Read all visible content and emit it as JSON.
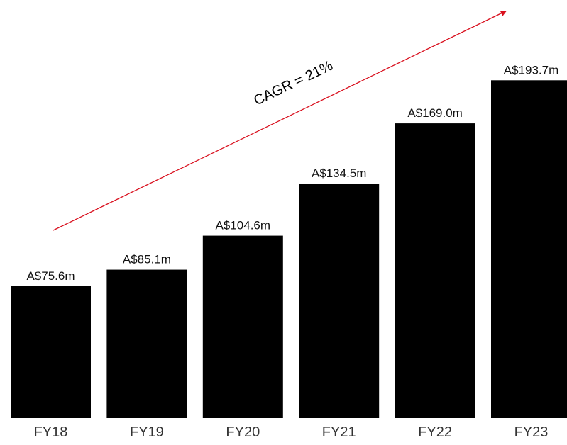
{
  "chart_data": {
    "type": "bar",
    "categories": [
      "FY18",
      "FY19",
      "FY20",
      "FY21",
      "FY22",
      "FY23"
    ],
    "values": [
      75.6,
      85.1,
      104.6,
      134.5,
      169.0,
      193.7
    ],
    "data_labels": [
      "A$75.6m",
      "A$85.1m",
      "A$104.6m",
      "A$134.5m",
      "A$169.0m",
      "A$193.7m"
    ],
    "unit": "A$m",
    "ylim": [
      0,
      200
    ],
    "grid": false,
    "title": "",
    "xlabel": "",
    "ylabel": "",
    "annotations": [
      {
        "text": "CAGR = 21%",
        "type": "trend-arrow"
      }
    ],
    "colors": {
      "bar": "#000000",
      "arrow": "#d9101e",
      "text": "#111111",
      "category_text": "#333333"
    }
  }
}
